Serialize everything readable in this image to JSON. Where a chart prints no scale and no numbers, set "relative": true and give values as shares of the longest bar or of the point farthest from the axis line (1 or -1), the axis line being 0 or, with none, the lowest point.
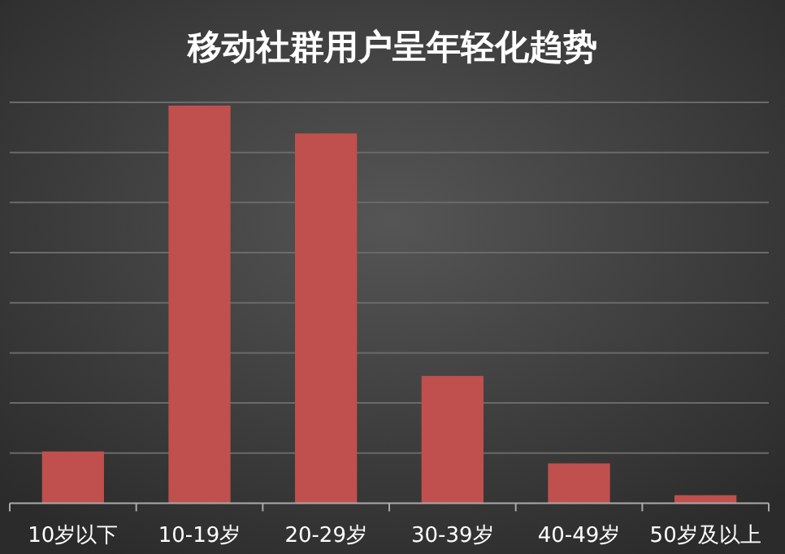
{
  "chart_data": {
    "type": "bar",
    "title": "移动社群用户呈年轻化趋势",
    "categories": [
      "10岁以下",
      "10-19岁",
      "20-29岁",
      "30-39岁",
      "40-49岁",
      "50岁及以上"
    ],
    "values": [
      0.13,
      1,
      0.93,
      0.32,
      0.1,
      0.02
    ],
    "color": "#c0504d",
    "relative": true,
    "grid": "y"
  }
}
